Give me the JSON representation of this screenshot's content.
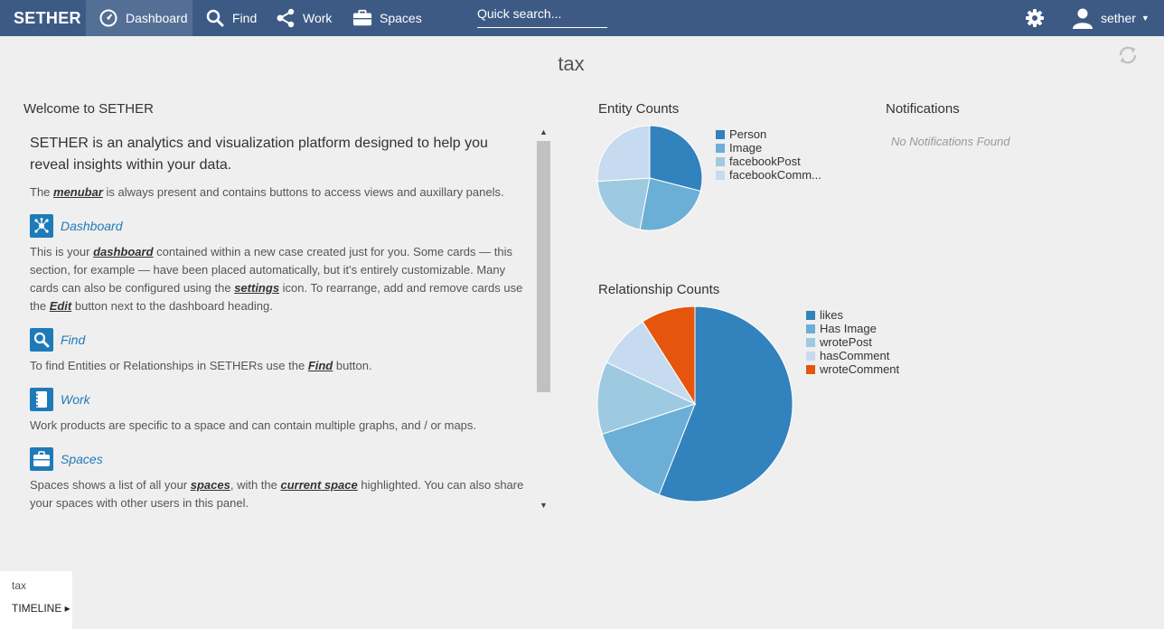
{
  "topbar": {
    "brand": "SETHER",
    "nav": [
      {
        "label": "Dashboard",
        "icon": "dashboard-gauge-icon"
      },
      {
        "label": "Find",
        "icon": "search-icon"
      },
      {
        "label": "Work",
        "icon": "share-nodes-icon"
      },
      {
        "label": "Spaces",
        "icon": "briefcase-icon"
      }
    ],
    "search_placeholder": "Quick search...",
    "user": "sether",
    "color": "#3d5a85"
  },
  "page": {
    "title": "tax"
  },
  "welcome": {
    "title": "Welcome to SETHER",
    "intro": "SETHER is an analytics and visualization platform designed to help you reveal insights within your data.",
    "menubar_pre": "The ",
    "menubar_kw": "menubar",
    "menubar_post": " is always present and contains buttons to access views and auxillary panels.",
    "dashboard": {
      "title": "Dashboard",
      "t1": "This is your ",
      "k1": "dashboard",
      "t2": " contained within a new case created just for you. Some cards — this section, for example — have been placed automatically, but it's entirely customizable. Many cards can also be configured using the ",
      "k2": "settings",
      "t3": " icon. To rearrange, add and remove cards use the ",
      "k3": "Edit",
      "t4": " button next to the dashboard heading."
    },
    "find": {
      "title": "Find",
      "t1": "To find Entities or Relationships in SETHERs use the ",
      "k1": "Find",
      "t2": " button."
    },
    "work": {
      "title": "Work",
      "t1": "Work products are specific to a space and can contain multiple graphs, and / or maps."
    },
    "spaces": {
      "title": "Spaces",
      "t1": "Spaces shows a list of all your ",
      "k1": "spaces",
      "t2": ", with the ",
      "k2": "current space",
      "t3": " highlighted. You can also share your spaces with other users in this panel."
    }
  },
  "entity_counts": {
    "title": "Entity Counts",
    "legend": [
      "Person",
      "Image",
      "facebookPost",
      "facebookComm..."
    ],
    "colors": [
      "#3182bd",
      "#6baed6",
      "#9ecae1",
      "#c6dbef"
    ]
  },
  "relationship_counts": {
    "title": "Relationship Counts",
    "legend": [
      "likes",
      "Has Image",
      "wrotePost",
      "hasComment",
      "wroteComment"
    ],
    "colors": [
      "#3182bd",
      "#6baed6",
      "#9ecae1",
      "#c6dbef",
      "#e6550d"
    ]
  },
  "notifications": {
    "title": "Notifications",
    "empty": "No Notifications Found"
  },
  "timeline": {
    "case": "tax",
    "button": "TIMELINE ▸"
  },
  "chart_data": [
    {
      "type": "pie",
      "title": "Entity Counts",
      "categories": [
        "Person",
        "Image",
        "facebookPost",
        "facebookComm..."
      ],
      "values": [
        29,
        24,
        21,
        26
      ]
    },
    {
      "type": "pie",
      "title": "Relationship Counts",
      "categories": [
        "likes",
        "Has Image",
        "wrotePost",
        "hasComment",
        "wroteComment"
      ],
      "values": [
        56,
        14,
        12,
        9,
        9
      ]
    }
  ]
}
